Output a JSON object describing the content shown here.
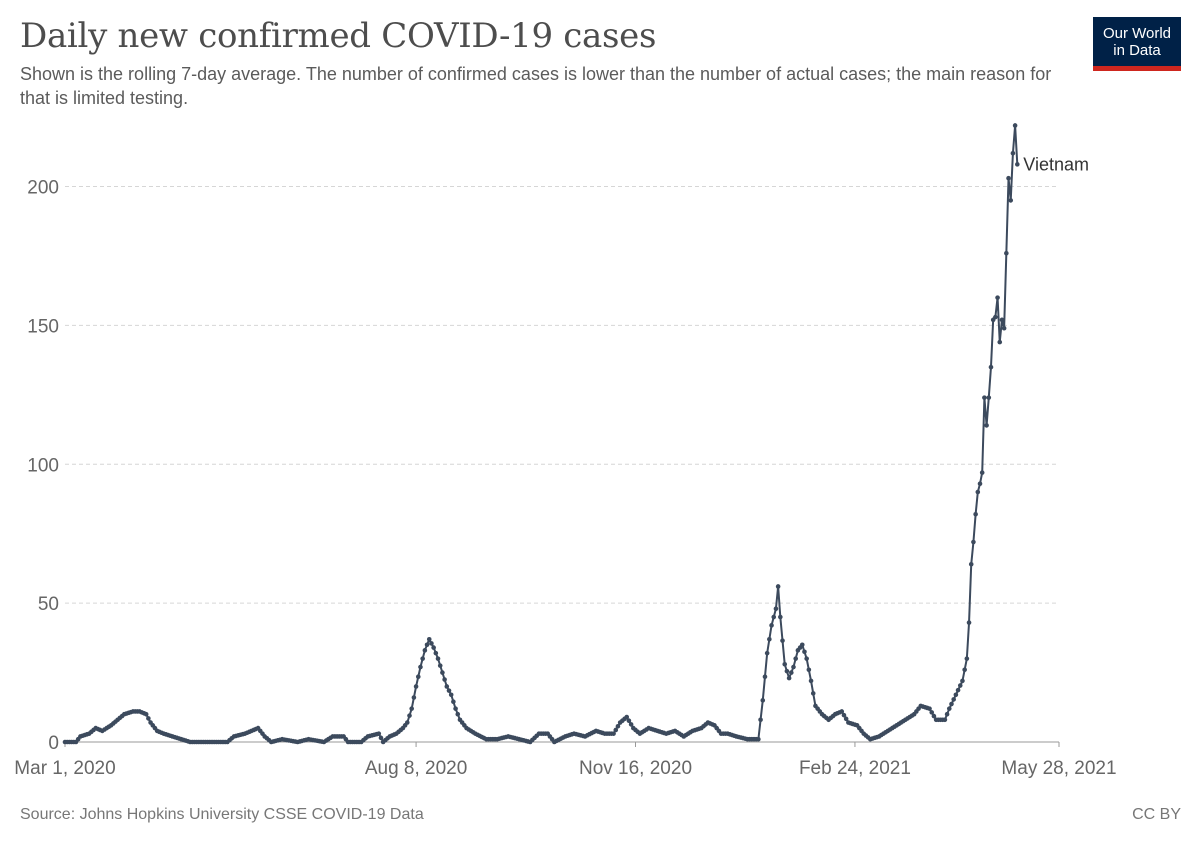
{
  "header": {
    "title": "Daily new confirmed COVID-19 cases",
    "subtitle": "Shown is the rolling 7-day average. The number of confirmed cases is lower than the number of actual cases; the main reason for that is limited testing."
  },
  "logo": {
    "line1": "Our World",
    "line2": "in Data",
    "bg_color": "#002147",
    "accent_color": "#ce261e"
  },
  "footer": {
    "source": "Source: Johns Hopkins University CSSE COVID-19 Data",
    "license": "CC BY"
  },
  "chart_data": {
    "type": "line",
    "x_type": "date",
    "ylim": [
      0,
      220
    ],
    "yticks": [
      0,
      50,
      100,
      150,
      200
    ],
    "xlim": [
      "2020-03-01",
      "2021-05-28"
    ],
    "xticks": [
      {
        "date": "2020-03-01",
        "label": "Mar 1, 2020"
      },
      {
        "date": "2020-08-08",
        "label": "Aug 8, 2020"
      },
      {
        "date": "2020-11-16",
        "label": "Nov 16, 2020"
      },
      {
        "date": "2021-02-24",
        "label": "Feb 24, 2021"
      },
      {
        "date": "2021-05-28",
        "label": "May 28, 2021"
      }
    ],
    "grid": "horizontal-dashed",
    "line_color": "#3c4a5d",
    "series": [
      {
        "name": "Vietnam",
        "points": [
          [
            "2020-03-01",
            0
          ],
          [
            "2020-03-06",
            0
          ],
          [
            "2020-03-08",
            2
          ],
          [
            "2020-03-12",
            3
          ],
          [
            "2020-03-15",
            5
          ],
          [
            "2020-03-18",
            4
          ],
          [
            "2020-03-22",
            6
          ],
          [
            "2020-03-25",
            8
          ],
          [
            "2020-03-28",
            10
          ],
          [
            "2020-04-01",
            11
          ],
          [
            "2020-04-04",
            11
          ],
          [
            "2020-04-07",
            10
          ],
          [
            "2020-04-09",
            7
          ],
          [
            "2020-04-12",
            4
          ],
          [
            "2020-04-15",
            3
          ],
          [
            "2020-04-19",
            2
          ],
          [
            "2020-04-23",
            1
          ],
          [
            "2020-04-27",
            0
          ],
          [
            "2020-05-05",
            0
          ],
          [
            "2020-05-14",
            0
          ],
          [
            "2020-05-17",
            2
          ],
          [
            "2020-05-22",
            3
          ],
          [
            "2020-05-25",
            4
          ],
          [
            "2020-05-28",
            5
          ],
          [
            "2020-05-31",
            2
          ],
          [
            "2020-06-03",
            0
          ],
          [
            "2020-06-08",
            1
          ],
          [
            "2020-06-15",
            0
          ],
          [
            "2020-06-20",
            1
          ],
          [
            "2020-06-27",
            0
          ],
          [
            "2020-07-01",
            2
          ],
          [
            "2020-07-06",
            2
          ],
          [
            "2020-07-08",
            0
          ],
          [
            "2020-07-14",
            0
          ],
          [
            "2020-07-17",
            2
          ],
          [
            "2020-07-22",
            3
          ],
          [
            "2020-07-24",
            0
          ],
          [
            "2020-07-27",
            2
          ],
          [
            "2020-07-30",
            3
          ],
          [
            "2020-08-02",
            5
          ],
          [
            "2020-08-04",
            7
          ],
          [
            "2020-08-06",
            12
          ],
          [
            "2020-08-08",
            20
          ],
          [
            "2020-08-10",
            27
          ],
          [
            "2020-08-12",
            33
          ],
          [
            "2020-08-14",
            37
          ],
          [
            "2020-08-16",
            34
          ],
          [
            "2020-08-18",
            30
          ],
          [
            "2020-08-20",
            25
          ],
          [
            "2020-08-22",
            20
          ],
          [
            "2020-08-24",
            17
          ],
          [
            "2020-08-26",
            12
          ],
          [
            "2020-08-28",
            8
          ],
          [
            "2020-08-31",
            5
          ],
          [
            "2020-09-04",
            3
          ],
          [
            "2020-09-09",
            1
          ],
          [
            "2020-09-14",
            1
          ],
          [
            "2020-09-19",
            2
          ],
          [
            "2020-09-24",
            1
          ],
          [
            "2020-09-29",
            0
          ],
          [
            "2020-10-03",
            3
          ],
          [
            "2020-10-07",
            3
          ],
          [
            "2020-10-10",
            0
          ],
          [
            "2020-10-15",
            2
          ],
          [
            "2020-10-19",
            3
          ],
          [
            "2020-10-24",
            2
          ],
          [
            "2020-10-29",
            4
          ],
          [
            "2020-11-02",
            3
          ],
          [
            "2020-11-06",
            3
          ],
          [
            "2020-11-09",
            7
          ],
          [
            "2020-11-12",
            9
          ],
          [
            "2020-11-15",
            5
          ],
          [
            "2020-11-18",
            3
          ],
          [
            "2020-11-22",
            5
          ],
          [
            "2020-11-26",
            4
          ],
          [
            "2020-11-30",
            3
          ],
          [
            "2020-12-04",
            4
          ],
          [
            "2020-12-08",
            2
          ],
          [
            "2020-12-12",
            4
          ],
          [
            "2020-12-16",
            5
          ],
          [
            "2020-12-19",
            7
          ],
          [
            "2020-12-22",
            6
          ],
          [
            "2020-12-25",
            3
          ],
          [
            "2020-12-28",
            3
          ],
          [
            "2021-01-01",
            2
          ],
          [
            "2021-01-06",
            1
          ],
          [
            "2021-01-11",
            1
          ],
          [
            "2021-01-13",
            15
          ],
          [
            "2021-01-15",
            32
          ],
          [
            "2021-01-17",
            42
          ],
          [
            "2021-01-19",
            48
          ],
          [
            "2021-01-20",
            56
          ],
          [
            "2021-01-21",
            45
          ],
          [
            "2021-01-23",
            28
          ],
          [
            "2021-01-25",
            23
          ],
          [
            "2021-01-27",
            27
          ],
          [
            "2021-01-29",
            33
          ],
          [
            "2021-01-31",
            35
          ],
          [
            "2021-02-02",
            30
          ],
          [
            "2021-02-04",
            22
          ],
          [
            "2021-02-06",
            13
          ],
          [
            "2021-02-09",
            10
          ],
          [
            "2021-02-12",
            8
          ],
          [
            "2021-02-15",
            10
          ],
          [
            "2021-02-18",
            11
          ],
          [
            "2021-02-21",
            7
          ],
          [
            "2021-02-25",
            6
          ],
          [
            "2021-02-28",
            3
          ],
          [
            "2021-03-03",
            1
          ],
          [
            "2021-03-07",
            2
          ],
          [
            "2021-03-11",
            4
          ],
          [
            "2021-03-15",
            6
          ],
          [
            "2021-03-19",
            8
          ],
          [
            "2021-03-23",
            10
          ],
          [
            "2021-03-26",
            13
          ],
          [
            "2021-03-30",
            12
          ],
          [
            "2021-04-02",
            8
          ],
          [
            "2021-04-06",
            8
          ],
          [
            "2021-04-08",
            12
          ],
          [
            "2021-04-11",
            17
          ],
          [
            "2021-04-14",
            22
          ],
          [
            "2021-04-16",
            30
          ],
          [
            "2021-04-17",
            43
          ],
          [
            "2021-04-18",
            64
          ],
          [
            "2021-04-19",
            72
          ],
          [
            "2021-04-20",
            82
          ],
          [
            "2021-04-21",
            90
          ],
          [
            "2021-04-22",
            93
          ],
          [
            "2021-04-23",
            97
          ],
          [
            "2021-04-24",
            124
          ],
          [
            "2021-04-25",
            114
          ],
          [
            "2021-04-26",
            124
          ],
          [
            "2021-04-27",
            135
          ],
          [
            "2021-04-28",
            152
          ],
          [
            "2021-04-29",
            153
          ],
          [
            "2021-04-30",
            160
          ],
          [
            "2021-05-01",
            144
          ],
          [
            "2021-05-02",
            152
          ],
          [
            "2021-05-03",
            149
          ],
          [
            "2021-05-05",
            203
          ],
          [
            "2021-05-06",
            195
          ],
          [
            "2021-05-07",
            212
          ],
          [
            "2021-05-08",
            222
          ],
          [
            "2021-05-09",
            208
          ]
        ]
      }
    ]
  }
}
